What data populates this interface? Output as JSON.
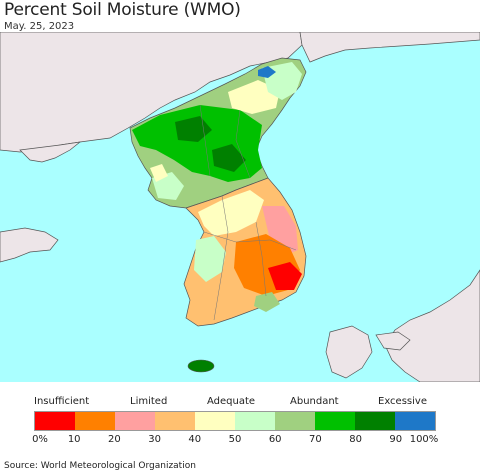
{
  "header": {
    "title": "Percent Soil Moisture (WMO)",
    "date": "May. 25, 2023"
  },
  "legend": {
    "category_labels": [
      "Insufficient",
      "Limited",
      "Adequate",
      "Abundant",
      "Excessive"
    ],
    "ticks": [
      "0%",
      "10",
      "20",
      "30",
      "40",
      "50",
      "60",
      "70",
      "80",
      "90",
      "100%"
    ],
    "colors": [
      "#ff0000",
      "#ff8000",
      "#ffa0a0",
      "#ffc070",
      "#ffffc0",
      "#c8ffc8",
      "#a0d080",
      "#00c000",
      "#008000",
      "#1e78c8"
    ]
  },
  "map_colors": {
    "ocean": "#aaffff",
    "land_other": "#ede5e8"
  },
  "footer": {
    "source": "Source: World Meteorological Organization"
  }
}
